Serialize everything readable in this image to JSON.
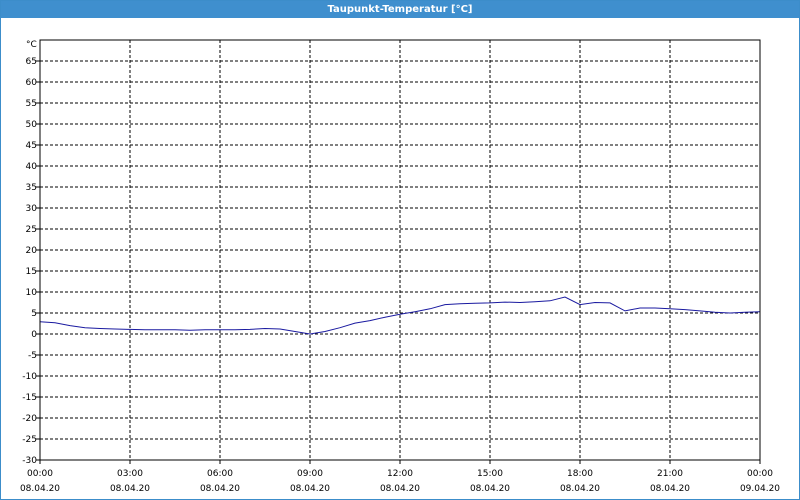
{
  "window": {
    "title": "Taupunkt-Temperatur [°C]"
  },
  "chart_data": {
    "type": "line",
    "title": "Taupunkt-Temperatur [°C]",
    "ylabel": "°C",
    "ylim": [
      -30,
      70
    ],
    "yticks": [
      65,
      60,
      55,
      50,
      45,
      40,
      35,
      30,
      25,
      20,
      15,
      10,
      5,
      0,
      -5,
      -10,
      -15,
      -20,
      -25,
      -30
    ],
    "xticks": [
      {
        "time": "00:00",
        "date": "08.04.20"
      },
      {
        "time": "03:00",
        "date": "08.04.20"
      },
      {
        "time": "06:00",
        "date": "08.04.20"
      },
      {
        "time": "09:00",
        "date": "08.04.20"
      },
      {
        "time": "12:00",
        "date": "08.04.20"
      },
      {
        "time": "15:00",
        "date": "08.04.20"
      },
      {
        "time": "18:00",
        "date": "08.04.20"
      },
      {
        "time": "21:00",
        "date": "08.04.20"
      },
      {
        "time": "00:00",
        "date": "09.04.20"
      }
    ],
    "grid": true,
    "line_color": "#1a1aa0",
    "series": [
      {
        "x": [
          "08.04.20 00:00",
          "08.04.20 00:30",
          "08.04.20 01:00",
          "08.04.20 01:30",
          "08.04.20 02:00",
          "08.04.20 02:30",
          "08.04.20 03:00",
          "08.04.20 03:30",
          "08.04.20 04:00",
          "08.04.20 04:30",
          "08.04.20 05:00",
          "08.04.20 05:30",
          "08.04.20 06:00",
          "08.04.20 06:30",
          "08.04.20 07:00",
          "08.04.20 07:30",
          "08.04.20 08:00",
          "08.04.20 08:30",
          "08.04.20 09:00",
          "08.04.20 09:30",
          "08.04.20 10:00",
          "08.04.20 10:30",
          "08.04.20 11:00",
          "08.04.20 11:30",
          "08.04.20 12:00",
          "08.04.20 12:30",
          "08.04.20 13:00",
          "08.04.20 13:30",
          "08.04.20 14:00",
          "08.04.20 14:30",
          "08.04.20 15:00",
          "08.04.20 15:30",
          "08.04.20 16:00",
          "08.04.20 16:30",
          "08.04.20 17:00",
          "08.04.20 17:30",
          "08.04.20 18:00",
          "08.04.20 18:30",
          "08.04.20 19:00",
          "08.04.20 19:30",
          "08.04.20 20:00",
          "08.04.20 20:30",
          "08.04.20 21:00",
          "08.04.20 21:30",
          "08.04.20 22:00",
          "08.04.20 22:30",
          "08.04.20 23:00",
          "08.04.20 23:30",
          "09.04.20 00:00"
        ],
        "values": [
          2.9,
          2.7,
          2.0,
          1.5,
          1.3,
          1.2,
          1.1,
          1.0,
          1.0,
          1.0,
          0.9,
          1.0,
          1.0,
          1.0,
          1.1,
          1.3,
          1.2,
          0.6,
          0.0,
          0.6,
          1.5,
          2.6,
          3.2,
          4.0,
          4.7,
          5.3,
          6.0,
          7.0,
          7.2,
          7.3,
          7.4,
          7.6,
          7.5,
          7.7,
          7.9,
          8.8,
          7.0,
          7.5,
          7.4,
          5.5,
          6.2,
          6.2,
          6.0,
          5.8,
          5.5,
          5.2,
          5.0,
          5.2,
          5.3
        ]
      }
    ]
  }
}
